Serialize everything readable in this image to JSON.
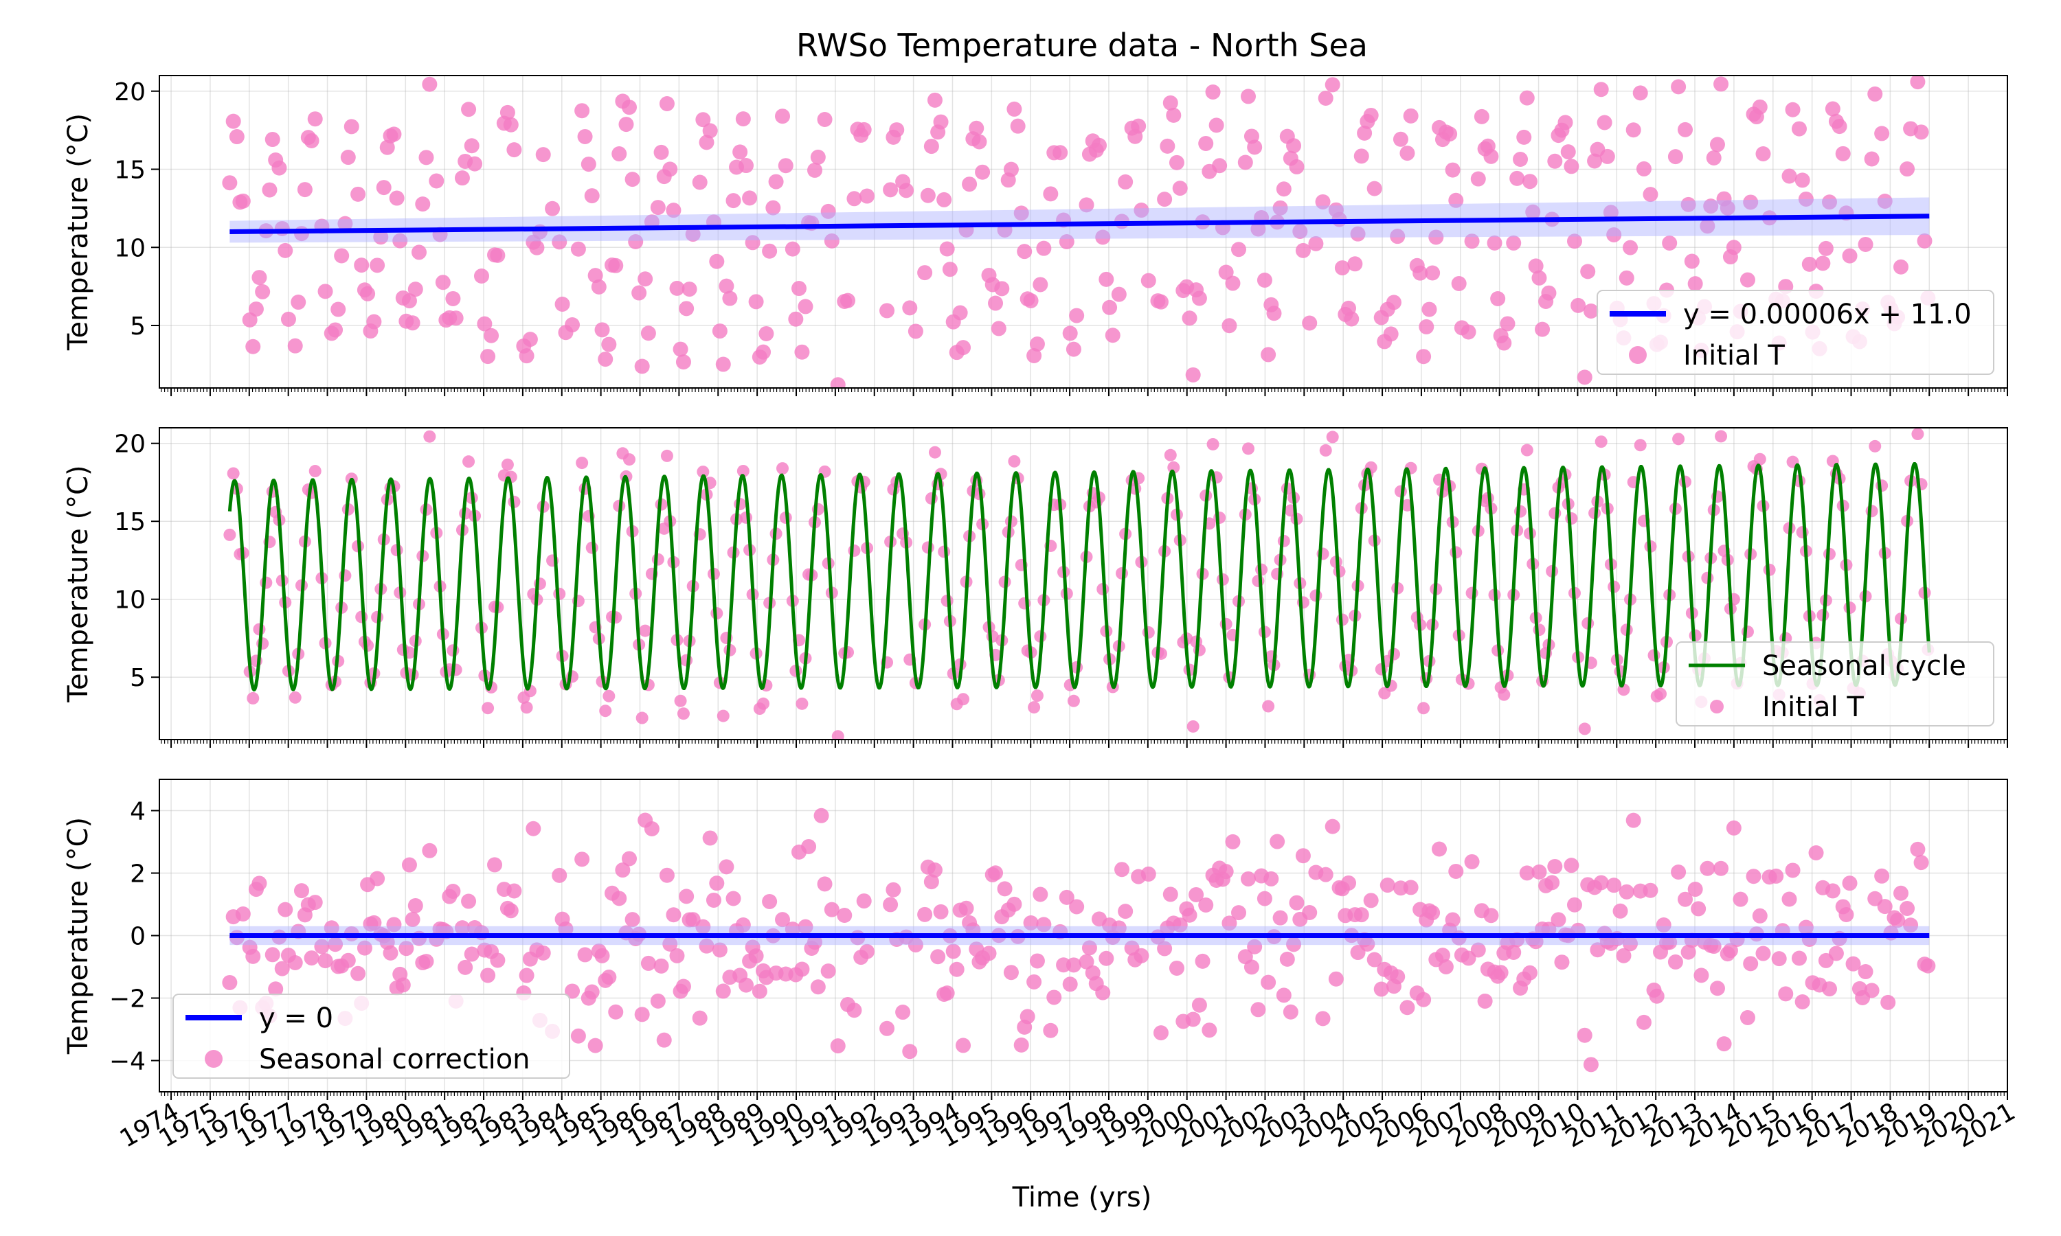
{
  "figure": {
    "title": "RWSo Temperature data - North Sea",
    "xlabel": "Time (yrs)"
  },
  "colors": {
    "scatter": "#f47cc3",
    "trend_line": "#0000ff",
    "trend_band": "#aab0ff",
    "seasonal_line": "#008000"
  },
  "chart_data": [
    {
      "type": "scatter",
      "panel": "top",
      "title": "RWSo Temperature data - North Sea",
      "xlabel": "",
      "ylabel": "Temperature (°C)",
      "xlim": [
        1973.7,
        2021.0
      ],
      "ylim": [
        1.0,
        21.0
      ],
      "yticks": [
        5,
        10,
        15,
        20
      ],
      "grid": true,
      "legend_position": "lower-right",
      "series": [
        {
          "name": "y = 0.00006x + 11.0",
          "kind": "line",
          "style": "trend",
          "x": [
            1975.5,
            2019.0
          ],
          "y": [
            11.0,
            12.0
          ]
        },
        {
          "name": "Initial T",
          "kind": "scatter",
          "style": "initial",
          "generator": "seasonal_scatter"
        }
      ]
    },
    {
      "type": "line",
      "panel": "middle",
      "xlabel": "",
      "ylabel": "Temperature (°C)",
      "xlim": [
        1973.7,
        2021.0
      ],
      "ylim": [
        1.0,
        21.0
      ],
      "yticks": [
        5,
        10,
        15,
        20
      ],
      "grid": true,
      "legend_position": "lower-right",
      "seasonal_model": {
        "mean_start": 10.9,
        "mean_end": 11.6,
        "amp_start": 6.7,
        "amp_end": 7.1,
        "period_years": 1.0,
        "peak_month": 8
      },
      "series": [
        {
          "name": "Seasonal cycle",
          "kind": "line",
          "style": "seasonal",
          "x_range": [
            1975.5,
            2019.0
          ]
        },
        {
          "name": "Initial T",
          "kind": "scatter",
          "style": "initial",
          "generator": "seasonal_scatter"
        }
      ]
    },
    {
      "type": "scatter",
      "panel": "bottom",
      "xlabel": "Time (yrs)",
      "ylabel": "Temperature (°C)",
      "xlim": [
        1973.7,
        2021.0
      ],
      "ylim": [
        -5.0,
        5.0
      ],
      "yticks": [
        -4,
        -2,
        0,
        2,
        4
      ],
      "grid": true,
      "legend_position": "lower-left",
      "series": [
        {
          "name": "y = 0",
          "kind": "line",
          "style": "trend",
          "x": [
            1975.5,
            2019.0
          ],
          "y": [
            0,
            0
          ]
        },
        {
          "name": "Seasonal correction",
          "kind": "scatter",
          "style": "correction",
          "generator": "residual_scatter"
        }
      ]
    }
  ],
  "x_ticks": [
    "1974",
    "1975",
    "1976",
    "1977",
    "1978",
    "1979",
    "1980",
    "1981",
    "1982",
    "1983",
    "1984",
    "1985",
    "1986",
    "1987",
    "1988",
    "1989",
    "1990",
    "1991",
    "1992",
    "1993",
    "1994",
    "1995",
    "1996",
    "1997",
    "1998",
    "1999",
    "2000",
    "2001",
    "2002",
    "2003",
    "2004",
    "2005",
    "2006",
    "2007",
    "2008",
    "2009",
    "2010",
    "2011",
    "2012",
    "2013",
    "2014",
    "2015",
    "2016",
    "2017",
    "2018",
    "2019",
    "2020",
    "2021"
  ]
}
